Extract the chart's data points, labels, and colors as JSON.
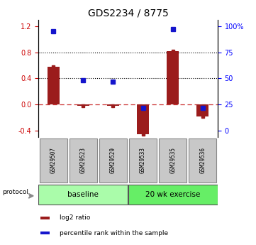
{
  "title": "GDS2234 / 8775",
  "samples": [
    "GSM29507",
    "GSM29523",
    "GSM29529",
    "GSM29533",
    "GSM29535",
    "GSM29536"
  ],
  "log2_ratio": [
    0.58,
    -0.02,
    -0.02,
    -0.45,
    0.82,
    -0.18
  ],
  "percentile_rank": [
    95,
    48,
    47,
    22,
    97,
    22
  ],
  "groups": [
    {
      "label": "baseline",
      "indices": [
        0,
        1,
        2
      ],
      "color": "#aafcaa"
    },
    {
      "label": "20 wk exercise",
      "indices": [
        3,
        4,
        5
      ],
      "color": "#66ee66"
    }
  ],
  "left_ylim": [
    -0.5,
    1.3
  ],
  "left_yticks": [
    -0.4,
    0.0,
    0.4,
    0.8,
    1.2
  ],
  "right_ytick_labels": [
    "0",
    "25",
    "50",
    "75",
    "100%"
  ],
  "hline_y": [
    0.4,
    0.8
  ],
  "bar_color": "#9B1C1C",
  "dot_color": "#1515CC",
  "sample_box_color": "#c8c8c8",
  "legend_items": [
    {
      "color": "#9B1C1C",
      "label": "log2 ratio"
    },
    {
      "color": "#1515CC",
      "label": "percentile rank within the sample"
    }
  ]
}
